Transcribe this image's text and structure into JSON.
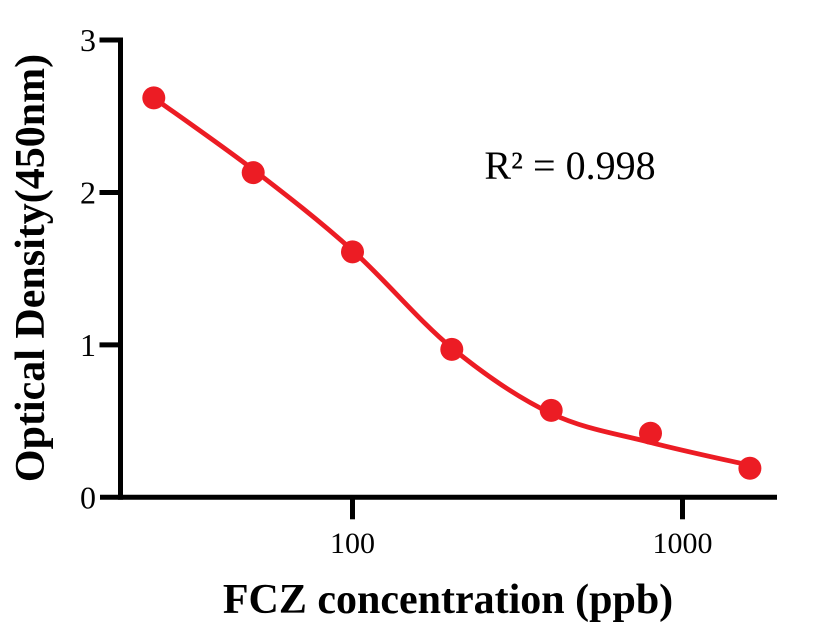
{
  "chart_data": {
    "type": "scatter",
    "subtype": "elisa-standard-curve-with-fit",
    "title": "",
    "xlabel": "FCZ concentration (ppb)",
    "ylabel": "Optical Density(450nm)",
    "x_scale": "log10",
    "y_scale": "linear",
    "x": [
      25,
      50,
      100,
      200,
      400,
      800,
      1600
    ],
    "y": [
      2.62,
      2.13,
      1.61,
      0.97,
      0.57,
      0.42,
      0.19
    ],
    "fit_curve": {
      "model": "4PL",
      "anchors_x": [
        25,
        50,
        100,
        200,
        400,
        800,
        1600
      ],
      "anchors_y": [
        2.62,
        2.15,
        1.62,
        0.98,
        0.55,
        0.36,
        0.21
      ]
    },
    "r_squared": 0.998,
    "annotation": "R² = 0.998",
    "xlim": [
      20,
      1950
    ],
    "ylim": [
      0,
      3
    ],
    "x_ticks": [
      {
        "value": 100,
        "label": "100"
      },
      {
        "value": 1000,
        "label": "1000"
      }
    ],
    "y_ticks": [
      {
        "value": 0,
        "label": "0"
      },
      {
        "value": 1,
        "label": "1"
      },
      {
        "value": 2,
        "label": "2"
      },
      {
        "value": 3,
        "label": "3"
      }
    ],
    "legend": "none",
    "grid": false,
    "colors": {
      "series": "#EC1C24",
      "axis": "#000000",
      "text": "#000000",
      "background": "#ffffff"
    }
  }
}
